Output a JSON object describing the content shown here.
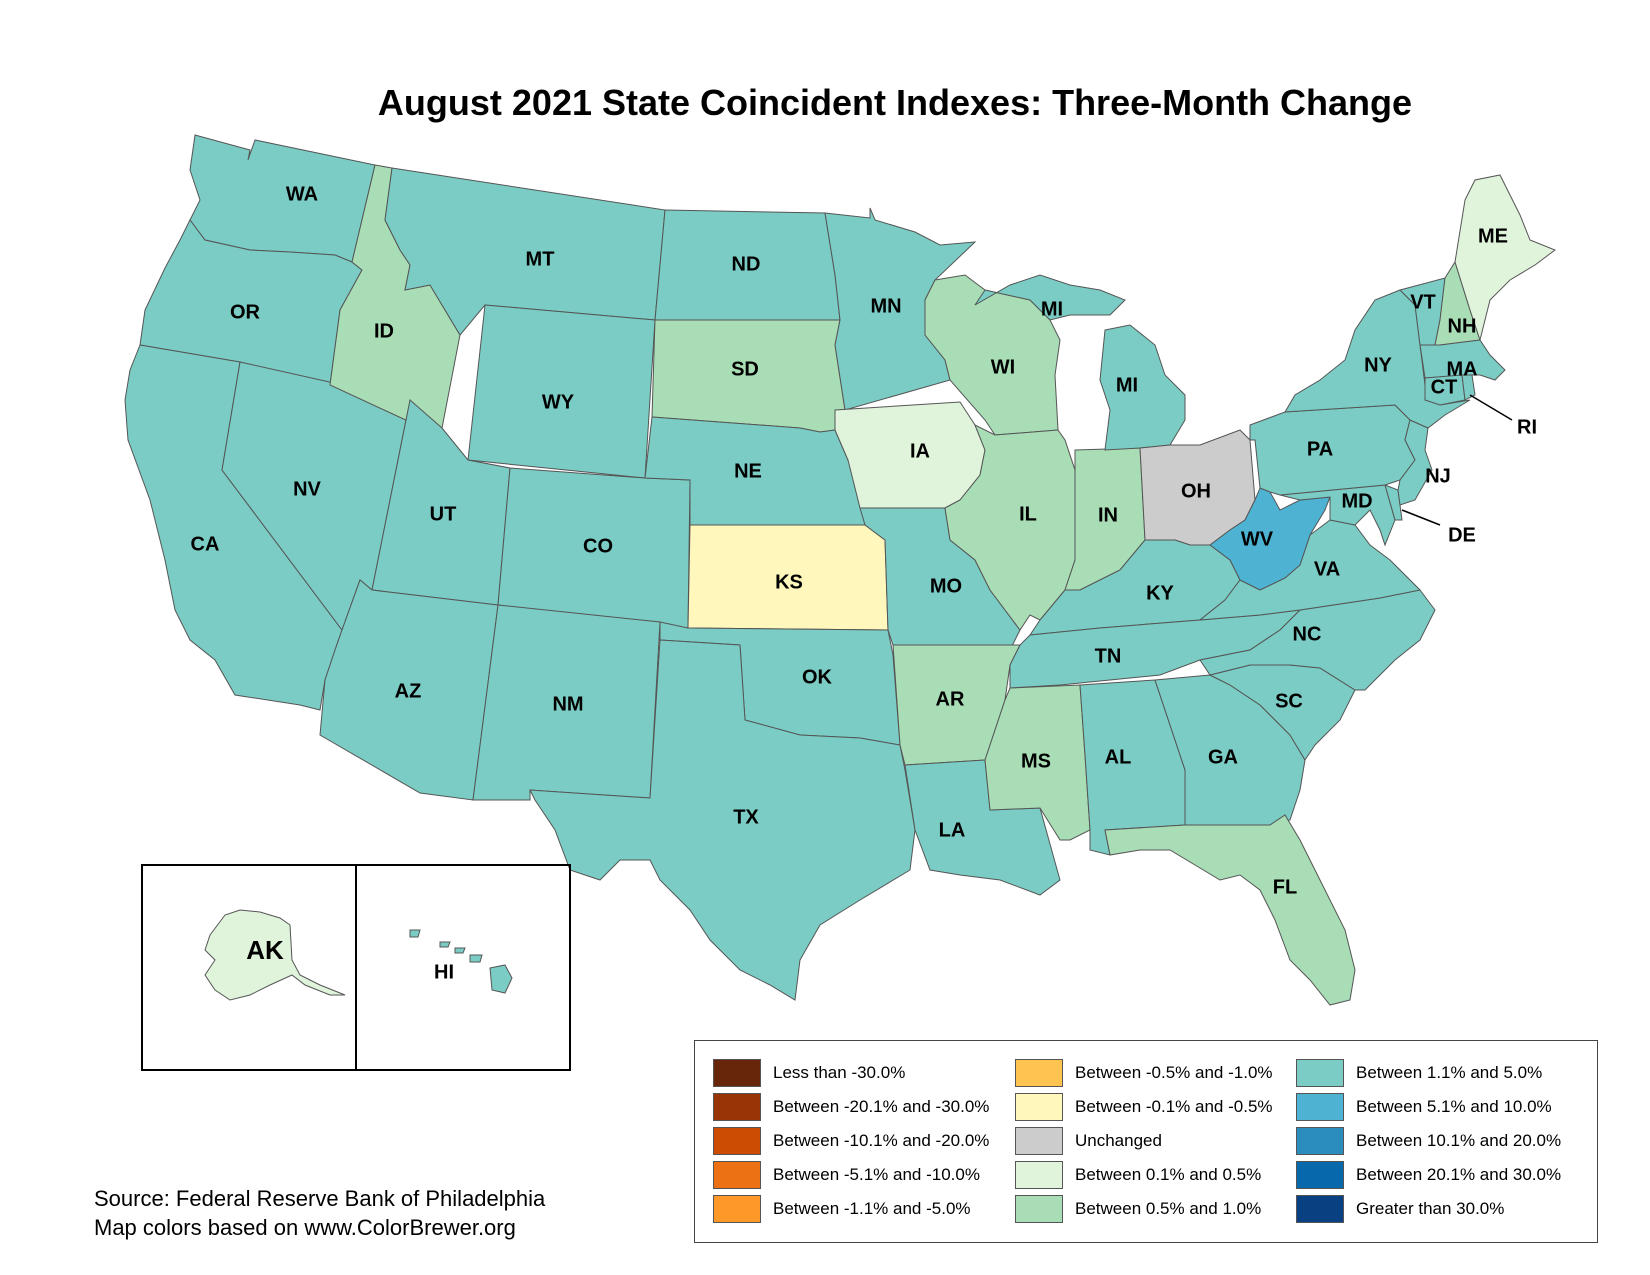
{
  "title": "August 2021 State Coincident Indexes: Three-Month Change",
  "colors": {
    "c_lt_neg30": "#67260a",
    "c_neg20_30": "#993404",
    "c_neg10_20": "#cc4c02",
    "c_neg5_10": "#ec7014",
    "c_neg1_5": "#fe9929",
    "c_neg05_1": "#fec44f",
    "c_neg01_05": "#fff7bc",
    "c_unchanged": "#cccccc",
    "c_01_05": "#e0f3db",
    "c_05_1": "#a8ddb5",
    "c_1_5": "#7accc4",
    "c_5_10": "#4eb3d3",
    "c_10_20": "#2b8cbe",
    "c_20_30": "#0868ac",
    "c_gt30": "#084081"
  },
  "states": {
    "WA": {
      "label": "WA",
      "category": "Between 1.1% and 5.0%"
    },
    "OR": {
      "label": "OR",
      "category": "Between 1.1% and 5.0%"
    },
    "CA": {
      "label": "CA",
      "category": "Between 1.1% and 5.0%"
    },
    "NV": {
      "label": "NV",
      "category": "Between 1.1% and 5.0%"
    },
    "ID": {
      "label": "ID",
      "category": "Between 0.5% and 1.0%"
    },
    "MT": {
      "label": "MT",
      "category": "Between 1.1% and 5.0%"
    },
    "WY": {
      "label": "WY",
      "category": "Between 1.1% and 5.0%"
    },
    "UT": {
      "label": "UT",
      "category": "Between 1.1% and 5.0%"
    },
    "AZ": {
      "label": "AZ",
      "category": "Between 1.1% and 5.0%"
    },
    "CO": {
      "label": "CO",
      "category": "Between 1.1% and 5.0%"
    },
    "NM": {
      "label": "NM",
      "category": "Between 1.1% and 5.0%"
    },
    "ND": {
      "label": "ND",
      "category": "Between 1.1% and 5.0%"
    },
    "SD": {
      "label": "SD",
      "category": "Between 0.5% and 1.0%"
    },
    "NE": {
      "label": "NE",
      "category": "Between 1.1% and 5.0%"
    },
    "KS": {
      "label": "KS",
      "category": "Between -0.1% and -0.5%"
    },
    "OK": {
      "label": "OK",
      "category": "Between 1.1% and 5.0%"
    },
    "TX": {
      "label": "TX",
      "category": "Between 1.1% and 5.0%"
    },
    "MN": {
      "label": "MN",
      "category": "Between 1.1% and 5.0%"
    },
    "IA": {
      "label": "IA",
      "category": "Between 0.1% and 0.5%"
    },
    "MO": {
      "label": "MO",
      "category": "Between 1.1% and 5.0%"
    },
    "AR": {
      "label": "AR",
      "category": "Between 0.5% and 1.0%"
    },
    "LA": {
      "label": "LA",
      "category": "Between 1.1% and 5.0%"
    },
    "WI": {
      "label": "WI",
      "category": "Between 0.5% and 1.0%"
    },
    "IL": {
      "label": "IL",
      "category": "Between 0.5% and 1.0%"
    },
    "MI": {
      "label": "MI",
      "category": "Between 1.1% and 5.0%"
    },
    "IN": {
      "label": "IN",
      "category": "Between 0.5% and 1.0%"
    },
    "OH": {
      "label": "OH",
      "category": "Unchanged"
    },
    "KY": {
      "label": "KY",
      "category": "Between 1.1% and 5.0%"
    },
    "TN": {
      "label": "TN",
      "category": "Between 1.1% and 5.0%"
    },
    "MS": {
      "label": "MS",
      "category": "Between 0.5% and 1.0%"
    },
    "AL": {
      "label": "AL",
      "category": "Between 1.1% and 5.0%"
    },
    "GA": {
      "label": "GA",
      "category": "Between 1.1% and 5.0%"
    },
    "FL": {
      "label": "FL",
      "category": "Between 0.5% and 1.0%"
    },
    "SC": {
      "label": "SC",
      "category": "Between 1.1% and 5.0%"
    },
    "NC": {
      "label": "NC",
      "category": "Between 1.1% and 5.0%"
    },
    "VA": {
      "label": "VA",
      "category": "Between 1.1% and 5.0%"
    },
    "WV": {
      "label": "WV",
      "category": "Between 5.1% and 10.0%"
    },
    "MD": {
      "label": "MD",
      "category": "Between 1.1% and 5.0%"
    },
    "DE": {
      "label": "DE",
      "category": "Between 1.1% and 5.0%"
    },
    "PA": {
      "label": "PA",
      "category": "Between 1.1% and 5.0%"
    },
    "NJ": {
      "label": "NJ",
      "category": "Between 1.1% and 5.0%"
    },
    "NY": {
      "label": "NY",
      "category": "Between 1.1% and 5.0%"
    },
    "CT": {
      "label": "CT",
      "category": "Between 1.1% and 5.0%"
    },
    "RI": {
      "label": "RI",
      "category": "Between 1.1% and 5.0%"
    },
    "MA": {
      "label": "MA",
      "category": "Between 1.1% and 5.0%"
    },
    "VT": {
      "label": "VT",
      "category": "Between 1.1% and 5.0%"
    },
    "NH": {
      "label": "NH",
      "category": "Between 0.5% and 1.0%"
    },
    "ME": {
      "label": "ME",
      "category": "Between 0.1% and 0.5%"
    },
    "AK": {
      "label": "AK",
      "category": "Between 0.1% and 0.5%"
    },
    "HI": {
      "label": "HI",
      "category": "Between 1.1% and 5.0%"
    }
  },
  "mi_upper_label": "MI",
  "legend": [
    {
      "label": "Less than -30.0%",
      "color": "#67260a"
    },
    {
      "label": "Between -20.1% and -30.0%",
      "color": "#993404"
    },
    {
      "label": "Between -10.1% and -20.0%",
      "color": "#cc4c02"
    },
    {
      "label": "Between -5.1% and -10.0%",
      "color": "#ec7014"
    },
    {
      "label": "Between -1.1% and -5.0%",
      "color": "#fe9929"
    },
    {
      "label": "Between -0.5% and -1.0%",
      "color": "#fec44f"
    },
    {
      "label": "Between -0.1% and -0.5%",
      "color": "#fff7bc"
    },
    {
      "label": "Unchanged",
      "color": "#cccccc"
    },
    {
      "label": "Between 0.1% and 0.5%",
      "color": "#e0f3db"
    },
    {
      "label": "Between 0.5% and 1.0%",
      "color": "#a8ddb5"
    },
    {
      "label": "Between 1.1% and 5.0%",
      "color": "#7accc4"
    },
    {
      "label": "Between 5.1% and 10.0%",
      "color": "#4eb3d3"
    },
    {
      "label": "Between 10.1% and 20.0%",
      "color": "#2b8cbe"
    },
    {
      "label": "Between 20.1% and 30.0%",
      "color": "#0868ac"
    },
    {
      "label": "Greater than 30.0%",
      "color": "#084081"
    }
  ],
  "source": {
    "line1": "Source: Federal Reserve Bank of Philadelphia",
    "line2": "Map colors based on www.ColorBrewer.org"
  }
}
